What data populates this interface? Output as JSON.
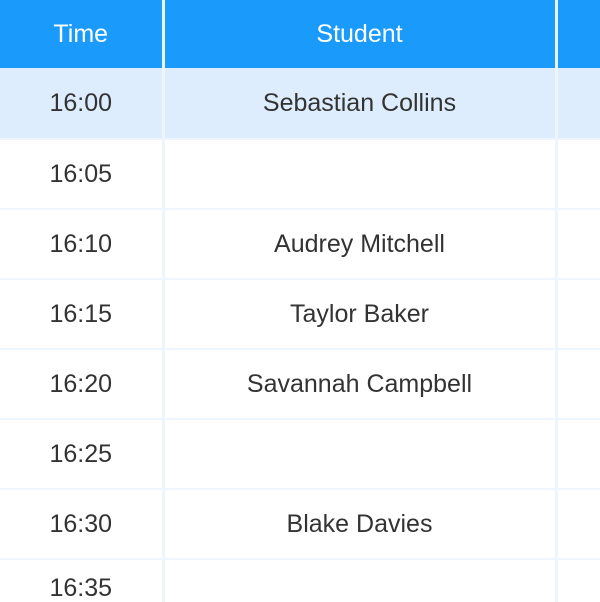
{
  "table": {
    "headers": [
      "Time",
      "Student",
      ""
    ],
    "rows": [
      {
        "time": "16:00",
        "student": "Sebastian Collins",
        "highlighted": true
      },
      {
        "time": "16:05",
        "student": ""
      },
      {
        "time": "16:10",
        "student": "Audrey Mitchell"
      },
      {
        "time": "16:15",
        "student": "Taylor Baker"
      },
      {
        "time": "16:20",
        "student": "Savannah Campbell"
      },
      {
        "time": "16:25",
        "student": ""
      },
      {
        "time": "16:30",
        "student": "Blake Davies"
      },
      {
        "time": "16:35",
        "student": ""
      }
    ]
  },
  "colors": {
    "header": "#1a9bfc",
    "highlight": "#ddedfd",
    "border": "#eef5fc"
  }
}
